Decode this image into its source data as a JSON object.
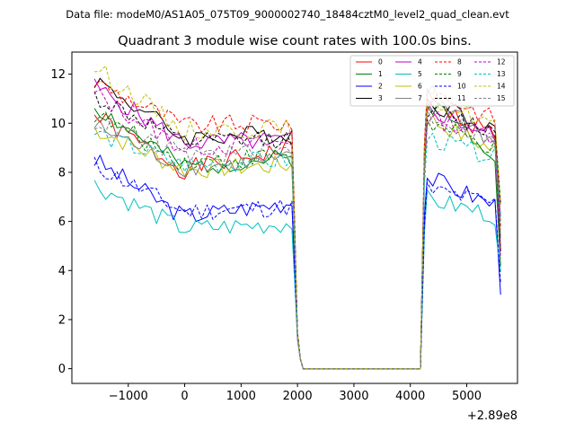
{
  "header": {
    "data_file_label": "Data file: modeM0/AS1A05_075T09_9000002740_18484cztM0_level2_quad_clean.evt"
  },
  "chart_data": {
    "type": "line",
    "title": "Quadrant 3 module wise count rates with 100.0s bins.",
    "xlabel": "",
    "ylabel": "",
    "x_offset_label": "+2.89e8",
    "xlim": [
      -2000,
      5900
    ],
    "ylim": [
      -0.6,
      12.9
    ],
    "xticks": [
      -1000,
      0,
      1000,
      2000,
      3000,
      4000,
      5000
    ],
    "xtick_labels": [
      "−1000",
      "0",
      "1000",
      "2000",
      "3000",
      "4000",
      "5000"
    ],
    "yticks": [
      0,
      2,
      4,
      6,
      8,
      10,
      12
    ],
    "ytick_labels": [
      "0",
      "2",
      "4",
      "6",
      "8",
      "10",
      "12"
    ],
    "grid": false,
    "legend_position": "top-right",
    "gap": {
      "start": 2100,
      "end": 4180
    },
    "series": [
      {
        "name": "0",
        "color": "#ff0000",
        "dash": "solid",
        "start": 10.3,
        "mid": 8.1,
        "end": 9.0,
        "post": 10.8,
        "post_end": 9.5,
        "seed": 1
      },
      {
        "name": "1",
        "color": "#008000",
        "dash": "solid",
        "start": 10.7,
        "mid": 8.2,
        "end": 8.6,
        "post": 10.9,
        "post_end": 8.7,
        "seed": 2
      },
      {
        "name": "2",
        "color": "#0000ff",
        "dash": "solid",
        "start": 8.5,
        "mid": 6.2,
        "end": 6.8,
        "post": 7.8,
        "post_end": 6.6,
        "seed": 3
      },
      {
        "name": "3",
        "color": "#000000",
        "dash": "solid",
        "start": 11.8,
        "mid": 9.4,
        "end": 9.6,
        "post": 10.9,
        "post_end": 9.8,
        "seed": 4
      },
      {
        "name": "4",
        "color": "#bf00bf",
        "dash": "solid",
        "start": 11.5,
        "mid": 9.2,
        "end": 9.3,
        "post": 10.6,
        "post_end": 9.4,
        "seed": 5
      },
      {
        "name": "5",
        "color": "#00bfbf",
        "dash": "solid",
        "start": 7.5,
        "mid": 5.7,
        "end": 5.9,
        "post": 6.9,
        "post_end": 6.2,
        "seed": 6
      },
      {
        "name": "6",
        "color": "#bfbf00",
        "dash": "solid",
        "start": 9.8,
        "mid": 8.1,
        "end": 8.3,
        "post": 10.2,
        "post_end": 8.8,
        "seed": 7
      },
      {
        "name": "7",
        "color": "#808080",
        "dash": "solid",
        "start": 9.9,
        "mid": 8.2,
        "end": 8.5,
        "post": 11.4,
        "post_end": 9.0,
        "seed": 8
      },
      {
        "name": "8",
        "color": "#ff0000",
        "dash": "dashed",
        "start": 11.7,
        "mid": 9.9,
        "end": 10.0,
        "post": 11.4,
        "post_end": 10.1,
        "seed": 9
      },
      {
        "name": "9",
        "color": "#008000",
        "dash": "dashed",
        "start": 10.4,
        "mid": 8.4,
        "end": 8.7,
        "post": 10.0,
        "post_end": 8.9,
        "seed": 10
      },
      {
        "name": "10",
        "color": "#0000ff",
        "dash": "dashed",
        "start": 8.3,
        "mid": 6.4,
        "end": 6.6,
        "post": 7.3,
        "post_end": 6.7,
        "seed": 11
      },
      {
        "name": "11",
        "color": "#000000",
        "dash": "dashed",
        "start": 11.1,
        "mid": 9.2,
        "end": 9.4,
        "post": 10.6,
        "post_end": 9.6,
        "seed": 12
      },
      {
        "name": "12",
        "color": "#bf00bf",
        "dash": "dashed",
        "start": 11.2,
        "mid": 9.0,
        "end": 9.2,
        "post": 10.2,
        "post_end": 9.5,
        "seed": 13
      },
      {
        "name": "13",
        "color": "#00bfbf",
        "dash": "dashed",
        "start": 9.6,
        "mid": 8.3,
        "end": 8.5,
        "post": 9.4,
        "post_end": 8.6,
        "seed": 14
      },
      {
        "name": "14",
        "color": "#bfbf00",
        "dash": "dashed",
        "start": 12.3,
        "mid": 9.7,
        "end": 9.8,
        "post": 11.0,
        "post_end": 9.9,
        "seed": 15
      },
      {
        "name": "15",
        "color": "#808080",
        "dash": "dashed",
        "start": 10.1,
        "mid": 8.7,
        "end": 8.9,
        "post": 10.4,
        "post_end": 9.2,
        "seed": 16
      }
    ]
  }
}
